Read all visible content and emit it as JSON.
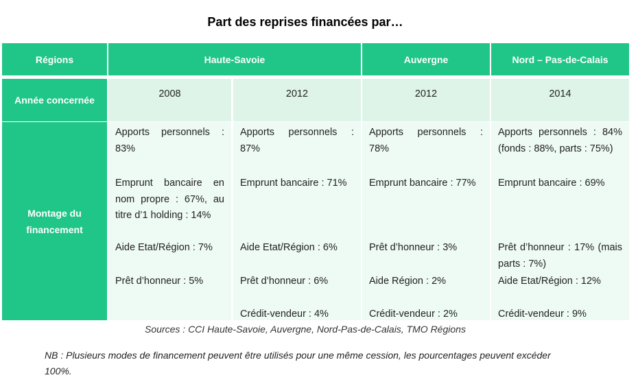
{
  "title": "Part des reprises financées par…",
  "table": {
    "header": {
      "regions_label": "Régions",
      "regions": [
        "Haute-Savoie",
        "Auvergne",
        "Nord – Pas-de-Calais"
      ]
    },
    "year_label": "Année concernée",
    "funding_label": "Montage du financement",
    "columns": [
      {
        "year": "2008",
        "items": [
          "Apports personnels : 83%",
          "Emprunt bancaire en nom propre : 67%, au titre d’1 holding : 14%",
          "Aide Etat/Région : 7%",
          "Prêt d’honneur : 5%"
        ]
      },
      {
        "year": "2012",
        "items": [
          "Apports personnels : 87%",
          "Emprunt bancaire : 71%",
          "Aide Etat/Région : 6%",
          "Prêt d’honneur : 6%",
          "Crédit-vendeur : 4%"
        ]
      },
      {
        "year": "2012",
        "items": [
          "Apports personnels : 78%",
          "Emprunt bancaire : 77%",
          "Prêt d’honneur : 3%",
          "Aide Région : 2%",
          "Crédit-vendeur : 2%"
        ]
      },
      {
        "year": "2014",
        "items": [
          "Apports personnels : 84% (fonds : 88%, parts : 75%)",
          "Emprunt bancaire : 69%",
          "Prêt d’honneur : 17% (mais parts : 7%)",
          "Aide Etat/Région : 12%",
          "Crédit-vendeur : 9%"
        ]
      }
    ]
  },
  "sources": "Sources : CCI Haute-Savoie, Auvergne, Nord-Pas-de-Calais, TMO Régions",
  "note": "NB : Plusieurs modes de financement peuvent être utilisés pour une même cession, les pourcentages peuvent excéder 100%."
}
